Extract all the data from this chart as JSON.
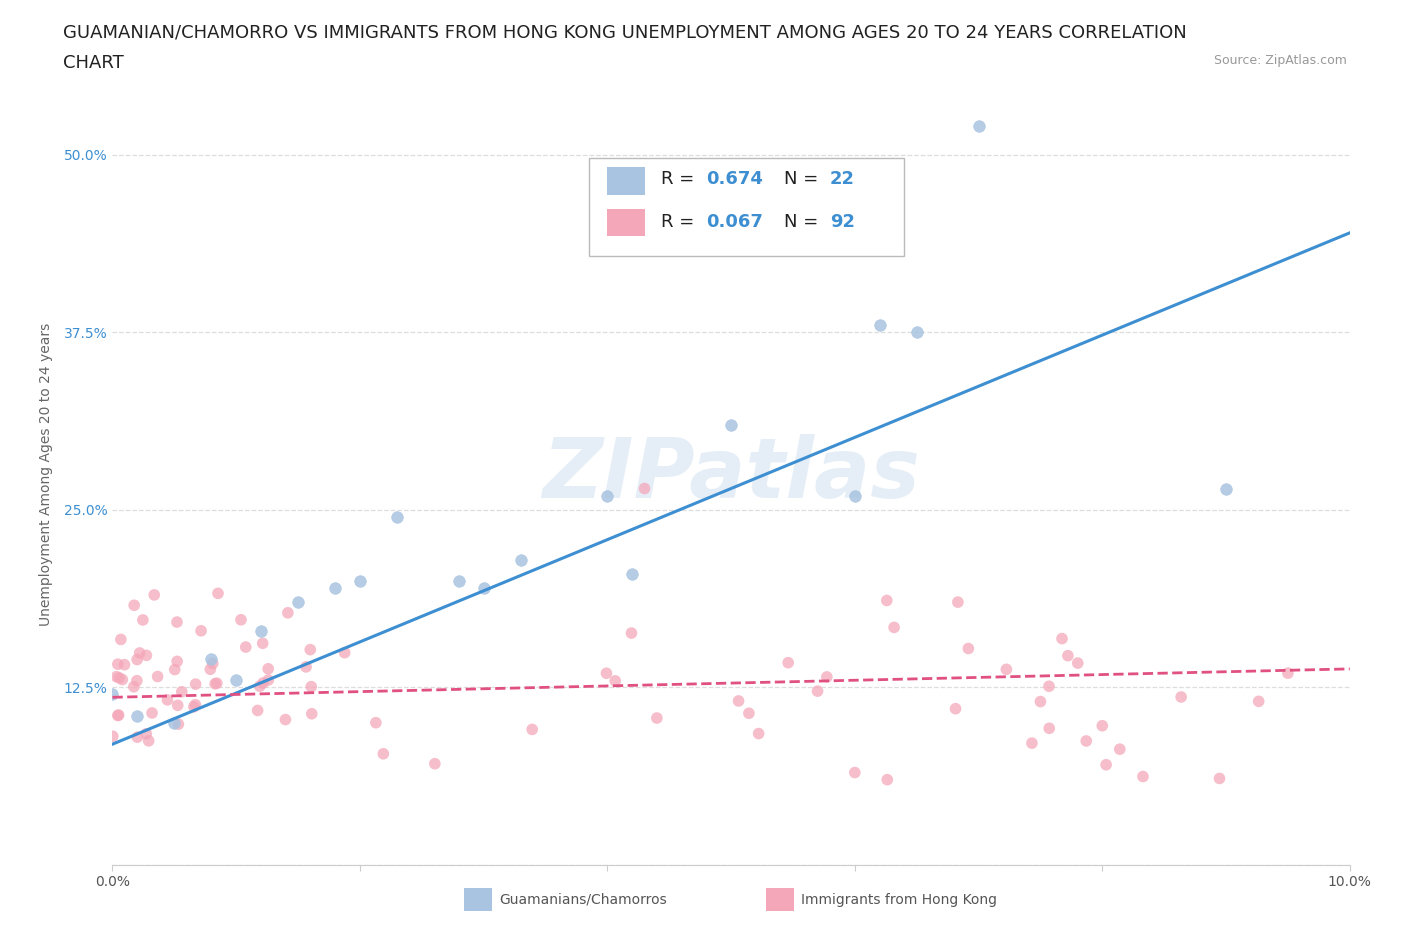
{
  "title_line1": "GUAMANIAN/CHAMORRO VS IMMIGRANTS FROM HONG KONG UNEMPLOYMENT AMONG AGES 20 TO 24 YEARS CORRELATION",
  "title_line2": "CHART",
  "source_text": "Source: ZipAtlas.com",
  "ylabel": "Unemployment Among Ages 20 to 24 years",
  "xlim": [
    0.0,
    0.1
  ],
  "ylim": [
    0.0,
    0.55
  ],
  "xticks": [
    0.0,
    0.02,
    0.04,
    0.06,
    0.08,
    0.1
  ],
  "xticklabels": [
    "0.0%",
    "",
    "",
    "",
    "",
    "10.0%"
  ],
  "yticks": [
    0.0,
    0.125,
    0.25,
    0.375,
    0.5
  ],
  "yticklabels": [
    "",
    "12.5%",
    "25.0%",
    "37.5%",
    "50.0%"
  ],
  "grid_color": "#dddddd",
  "background_color": "#ffffff",
  "watermark": "ZIPatlas",
  "blue_color": "#a8c4e0",
  "pink_color": "#f4a7b9",
  "blue_line_color": "#3d8fd1",
  "pink_line_color": "#e05080",
  "blue_R": "0.674",
  "blue_N": "22",
  "pink_R": "0.067",
  "pink_N": "92",
  "blue_line_x": [
    0.0,
    0.1
  ],
  "blue_line_y": [
    0.085,
    0.445
  ],
  "pink_line_x": [
    0.0,
    0.1
  ],
  "pink_line_y": [
    0.118,
    0.138
  ],
  "title_fontsize": 13,
  "axis_label_fontsize": 10,
  "tick_fontsize": 10,
  "marker_size": 70
}
